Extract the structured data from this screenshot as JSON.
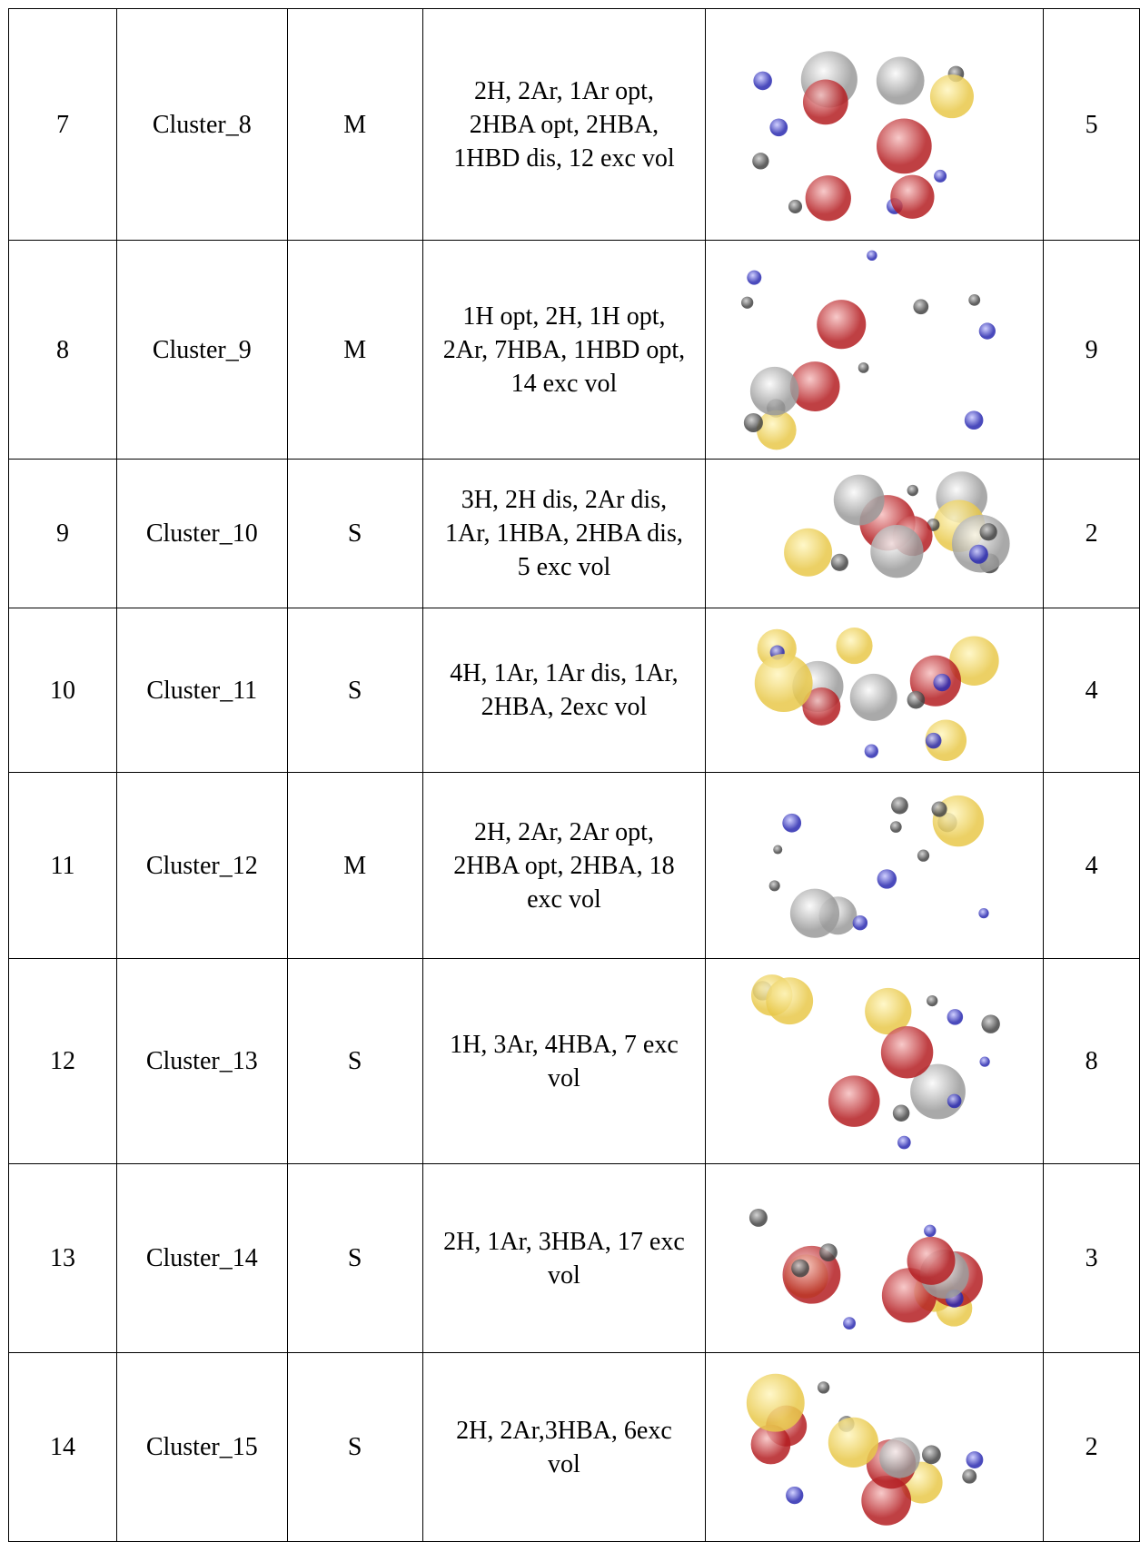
{
  "table": {
    "rows": [
      [
        7,
        "Cluster_8",
        "M",
        "2H, 2Ar, 1Ar opt, 2HBA opt, 2HBA, 1HBD dis, 12 exc vol",
        5
      ],
      [
        8,
        "Cluster_9",
        "M",
        "1H opt, 2H, 1H opt, 2Ar, 7HBA, 1HBD opt, 14 exc vol",
        9
      ],
      [
        9,
        "Cluster_10",
        "S",
        "3H, 2H dis, 2Ar dis, 1Ar, 1HBA, 2HBA dis, 5 exc vol",
        2
      ],
      [
        10,
        "Cluster_11",
        "S",
        "4H, 1Ar, 1Ar dis, 1Ar, 2HBA, 2exc vol",
        4
      ],
      [
        11,
        "Cluster_12",
        "M",
        "2H, 2Ar, 2Ar opt, 2HBA opt, 2HBA, 18 exc vol",
        4
      ],
      [
        12,
        "Cluster_13",
        "S",
        "1H, 3Ar, 4HBA, 7 exc vol",
        8
      ],
      [
        13,
        "Cluster_14",
        "S",
        "2H, 1Ar, 3HBA, 17 exc vol",
        3
      ],
      [
        14,
        "Cluster_15",
        "S",
        "2H, 2Ar,3HBA, 6exc vol",
        2
      ]
    ]
  }
}
